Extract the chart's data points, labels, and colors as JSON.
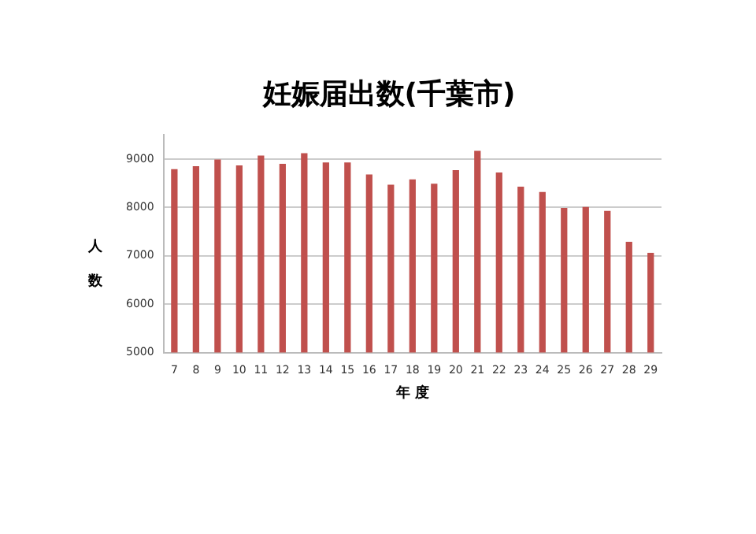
{
  "chart_data": {
    "type": "bar",
    "title": "妊娠届出数(千葉市)",
    "xlabel": "年 度",
    "ylabel": "人数",
    "categories": [
      "7",
      "8",
      "9",
      "10",
      "11",
      "12",
      "13",
      "14",
      "15",
      "16",
      "17",
      "18",
      "19",
      "20",
      "21",
      "22",
      "23",
      "24",
      "25",
      "26",
      "27",
      "28",
      "29"
    ],
    "values": [
      8790,
      8850,
      8990,
      8870,
      9070,
      8900,
      9120,
      8930,
      8930,
      8680,
      8470,
      8580,
      8490,
      8770,
      9170,
      8720,
      8430,
      8320,
      7990,
      8010,
      7930,
      7290,
      7060
    ],
    "color": "#c0504d",
    "ylim": [
      5000,
      9500
    ],
    "yticks": [
      5000,
      6000,
      7000,
      8000,
      9000
    ],
    "grid": "y"
  }
}
